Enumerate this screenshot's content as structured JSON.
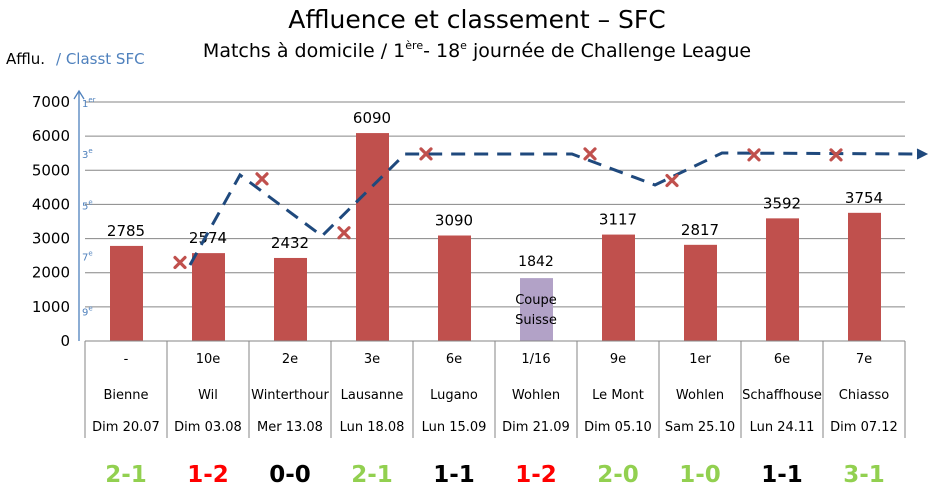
{
  "chart_data": {
    "type": "bar",
    "title": "Affluence et classement – SFC",
    "subtitle_parts": {
      "a": "Matchs à domicile / 1",
      "sup1": "ère",
      "b": "- 18",
      "sup2": "e",
      "c": " journée de Challenge League"
    },
    "ylabel": "Afflu.",
    "ylabel2": "/ Classt SFC",
    "ylim": [
      0,
      7000
    ],
    "yticks": [
      "0",
      "1000",
      "2000",
      "3000",
      "4000",
      "5000",
      "6000",
      "7000"
    ],
    "rank_ticks": [
      {
        "label": "1",
        "sup": "er",
        "value": 7000
      },
      {
        "label": "3",
        "sup": "e",
        "value": 5500
      },
      {
        "label": "5",
        "sup": "e",
        "value": 4000
      },
      {
        "label": "7",
        "sup": "e",
        "value": 2500
      },
      {
        "label": "9",
        "sup": "e",
        "value": 900
      }
    ],
    "categories": [
      {
        "opp_rank": "-",
        "opponent": "Bienne",
        "date": "Dim 20.07",
        "score": "2-1",
        "result": "win"
      },
      {
        "opp_rank": "10e",
        "opponent": "Wil",
        "date": "Dim 03.08",
        "score": "1-2",
        "result": "loss"
      },
      {
        "opp_rank": "2e",
        "opponent": "Winterthour",
        "date": "Mer 13.08",
        "score": "0-0",
        "result": "draw"
      },
      {
        "opp_rank": "3e",
        "opponent": "Lausanne",
        "date": "Lun 18.08",
        "score": "2-1",
        "result": "win"
      },
      {
        "opp_rank": "6e",
        "opponent": "Lugano",
        "date": "Lun 15.09",
        "score": "1-1",
        "result": "draw"
      },
      {
        "opp_rank": "1/16",
        "opponent": "Wohlen",
        "date": "Dim 21.09",
        "score": "1-2",
        "result": "loss"
      },
      {
        "opp_rank": "9e",
        "opponent": "Le Mont",
        "date": "Dim 05.10",
        "score": "2-0",
        "result": "win"
      },
      {
        "opp_rank": "1er",
        "opponent": "Wohlen",
        "date": "Sam 25.10",
        "score": "1-0",
        "result": "win"
      },
      {
        "opp_rank": "6e",
        "opponent": "Schaffhouse",
        "date": "Lun 24.11",
        "score": "1-1",
        "result": "draw"
      },
      {
        "opp_rank": "7e",
        "opponent": "Chiasso",
        "date": "Dim 07.12",
        "score": "3-1",
        "result": "win"
      }
    ],
    "values": [
      2785,
      2574,
      2432,
      6090,
      3090,
      1842,
      3117,
      2817,
      3592,
      3754
    ],
    "value_labels": [
      "2785",
      "2574",
      "2432",
      "6090",
      "3090",
      "1842",
      "3117",
      "2817",
      "3592",
      "3754"
    ],
    "cup_index": 5,
    "cup_label_1": "Coupe",
    "cup_label_2": "Suisse",
    "rank_series": [
      null,
      2300,
      4750,
      3170,
      5480,
      null,
      5480,
      4700,
      5450,
      5450
    ],
    "colors": {
      "bar": "#c0504d",
      "cup_bar": "#b2a2c7",
      "rank_line": "#1f497d",
      "cross": "#c0504d",
      "axis2": "#4f81bd",
      "win": "#92d050",
      "loss": "#ff0000",
      "draw": "#000000",
      "grid": "#868686"
    }
  }
}
